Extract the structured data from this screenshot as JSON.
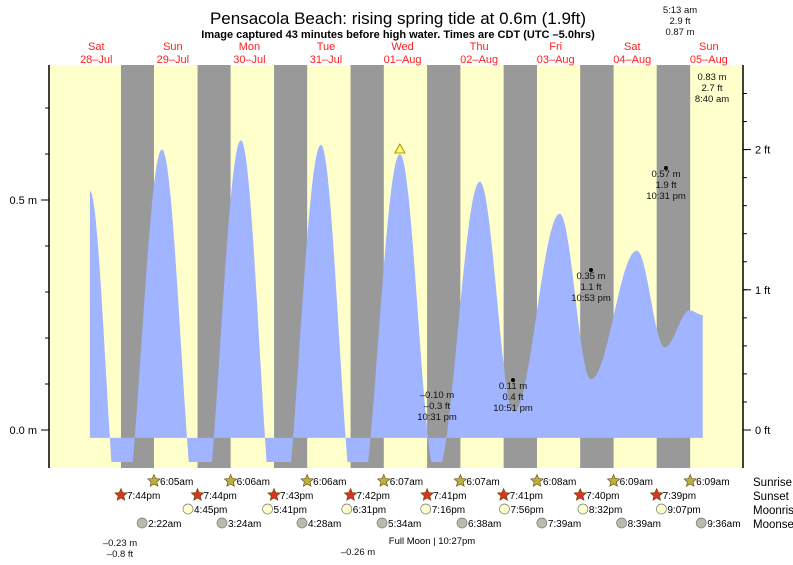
{
  "chart_data": {
    "type": "area",
    "title": "Pensacola Beach: rising  spring tide at 0.6m (1.9ft)",
    "subtitle": "Image captured 43 minutes before high water. Times are CDT (UTC –5.0hrs)",
    "days": [
      {
        "dow": "Sat",
        "date": "28–Jul"
      },
      {
        "dow": "Sun",
        "date": "29–Jul"
      },
      {
        "dow": "Mon",
        "date": "30–Jul"
      },
      {
        "dow": "Tue",
        "date": "31–Jul"
      },
      {
        "dow": "Wed",
        "date": "01–Aug"
      },
      {
        "dow": "Thu",
        "date": "02–Aug"
      },
      {
        "dow": "Fri",
        "date": "03–Aug"
      },
      {
        "dow": "Sat",
        "date": "04–Aug"
      },
      {
        "dow": "Sun",
        "date": "05–Aug"
      }
    ],
    "y_left": {
      "unit": "m",
      "ticks": [
        {
          "v": 0.0,
          "label": "0.0 m"
        },
        {
          "v": 0.5,
          "label": "0.5 m"
        }
      ],
      "range_m": [
        -0.07,
        0.79
      ]
    },
    "y_right": {
      "unit": "ft",
      "ticks": [
        {
          "v": 0,
          "label": "0 ft"
        },
        {
          "v": 1,
          "label": "1 ft"
        },
        {
          "v": 2,
          "label": "2 ft"
        }
      ]
    },
    "tide_series_m": [
      {
        "t": "28-Jul 10:00",
        "h": 0.52
      },
      {
        "t": "28-Jul 19:44",
        "h": -0.23
      },
      {
        "t": "29-Jul 08:36",
        "h": 0.61
      },
      {
        "t": "29-Jul 20:30",
        "h": -0.24
      },
      {
        "t": "30-Jul 09:20",
        "h": 0.63
      },
      {
        "t": "30-Jul 20:56",
        "h": -0.26
      },
      {
        "t": "31-Jul 10:24",
        "h": 0.62
      },
      {
        "t": "31-Jul 21:40",
        "h": -0.2
      },
      {
        "t": "01-Aug 11:10",
        "h": 0.6
      },
      {
        "t": "01-Aug 22:31",
        "h": -0.1
      },
      {
        "t": "02-Aug 12:13",
        "h": 0.54
      },
      {
        "t": "02-Aug 22:51",
        "h": 0.04
      },
      {
        "t": "03-Aug 13:16",
        "h": 0.47
      },
      {
        "t": "03-Aug 23:00",
        "h": 0.11
      },
      {
        "t": "04-Aug 13:25",
        "h": 0.39
      },
      {
        "t": "04-Aug 22:10",
        "h": 0.18
      },
      {
        "t": "05-Aug 06:00",
        "h": 0.26
      },
      {
        "t": "05-Aug 10:05",
        "h": 0.25
      }
    ],
    "current_marker": {
      "t": "01-Aug 11:10",
      "h": 0.6
    },
    "annotations": [
      [
        "5:13 am",
        "2.9 ft",
        "0.87 m"
      ],
      [
        "0.83 m",
        "2.7 ft",
        "8:40 am"
      ],
      [
        "0.57 m",
        "1.9 ft",
        "10:31 pm"
      ],
      [
        "0.35 m",
        "1.1 ft",
        "10:53 pm"
      ],
      [
        "0.11 m",
        "0.4 ft",
        "10:51 pm"
      ],
      [
        "–0.10 m",
        "–0.3 ft",
        "10:31 pm"
      ],
      [
        "–0.23 m",
        "–0.8 ft"
      ],
      [
        "–0.26 m"
      ]
    ],
    "colors": {
      "day": "#ffffcc",
      "night": "#999999",
      "water": "#a0b4ff",
      "day_label": "#ff2020",
      "sunrise_icon": "#b8b040",
      "sunset_icon": "#dd3322",
      "moonrise_icon": "#ffffcc",
      "moonset_icon": "#bbbbaa"
    },
    "grid": false
  },
  "almanac": {
    "row_labels": {
      "sunrise": "Sunrise",
      "sunset": "Sunset",
      "moonrise": "Moonrise",
      "moonset": "Moonset"
    },
    "sunrise": [
      "6:05am",
      "6:06am",
      "6:06am",
      "6:07am",
      "6:07am",
      "6:08am",
      "6:09am",
      "6:09am"
    ],
    "sunset": [
      "7:44pm",
      "7:44pm",
      "7:43pm",
      "7:42pm",
      "7:41pm",
      "7:41pm",
      "7:40pm",
      "7:39pm"
    ],
    "moonrise": [
      "4:45pm",
      "5:41pm",
      "6:31pm",
      "7:16pm",
      "7:56pm",
      "8:32pm",
      "9:07pm"
    ],
    "moonset": [
      "2:22am",
      "3:24am",
      "4:28am",
      "5:34am",
      "6:38am",
      "7:39am",
      "8:39am",
      "9:36am"
    ],
    "moon_phase": "Full Moon | 10:27pm"
  }
}
